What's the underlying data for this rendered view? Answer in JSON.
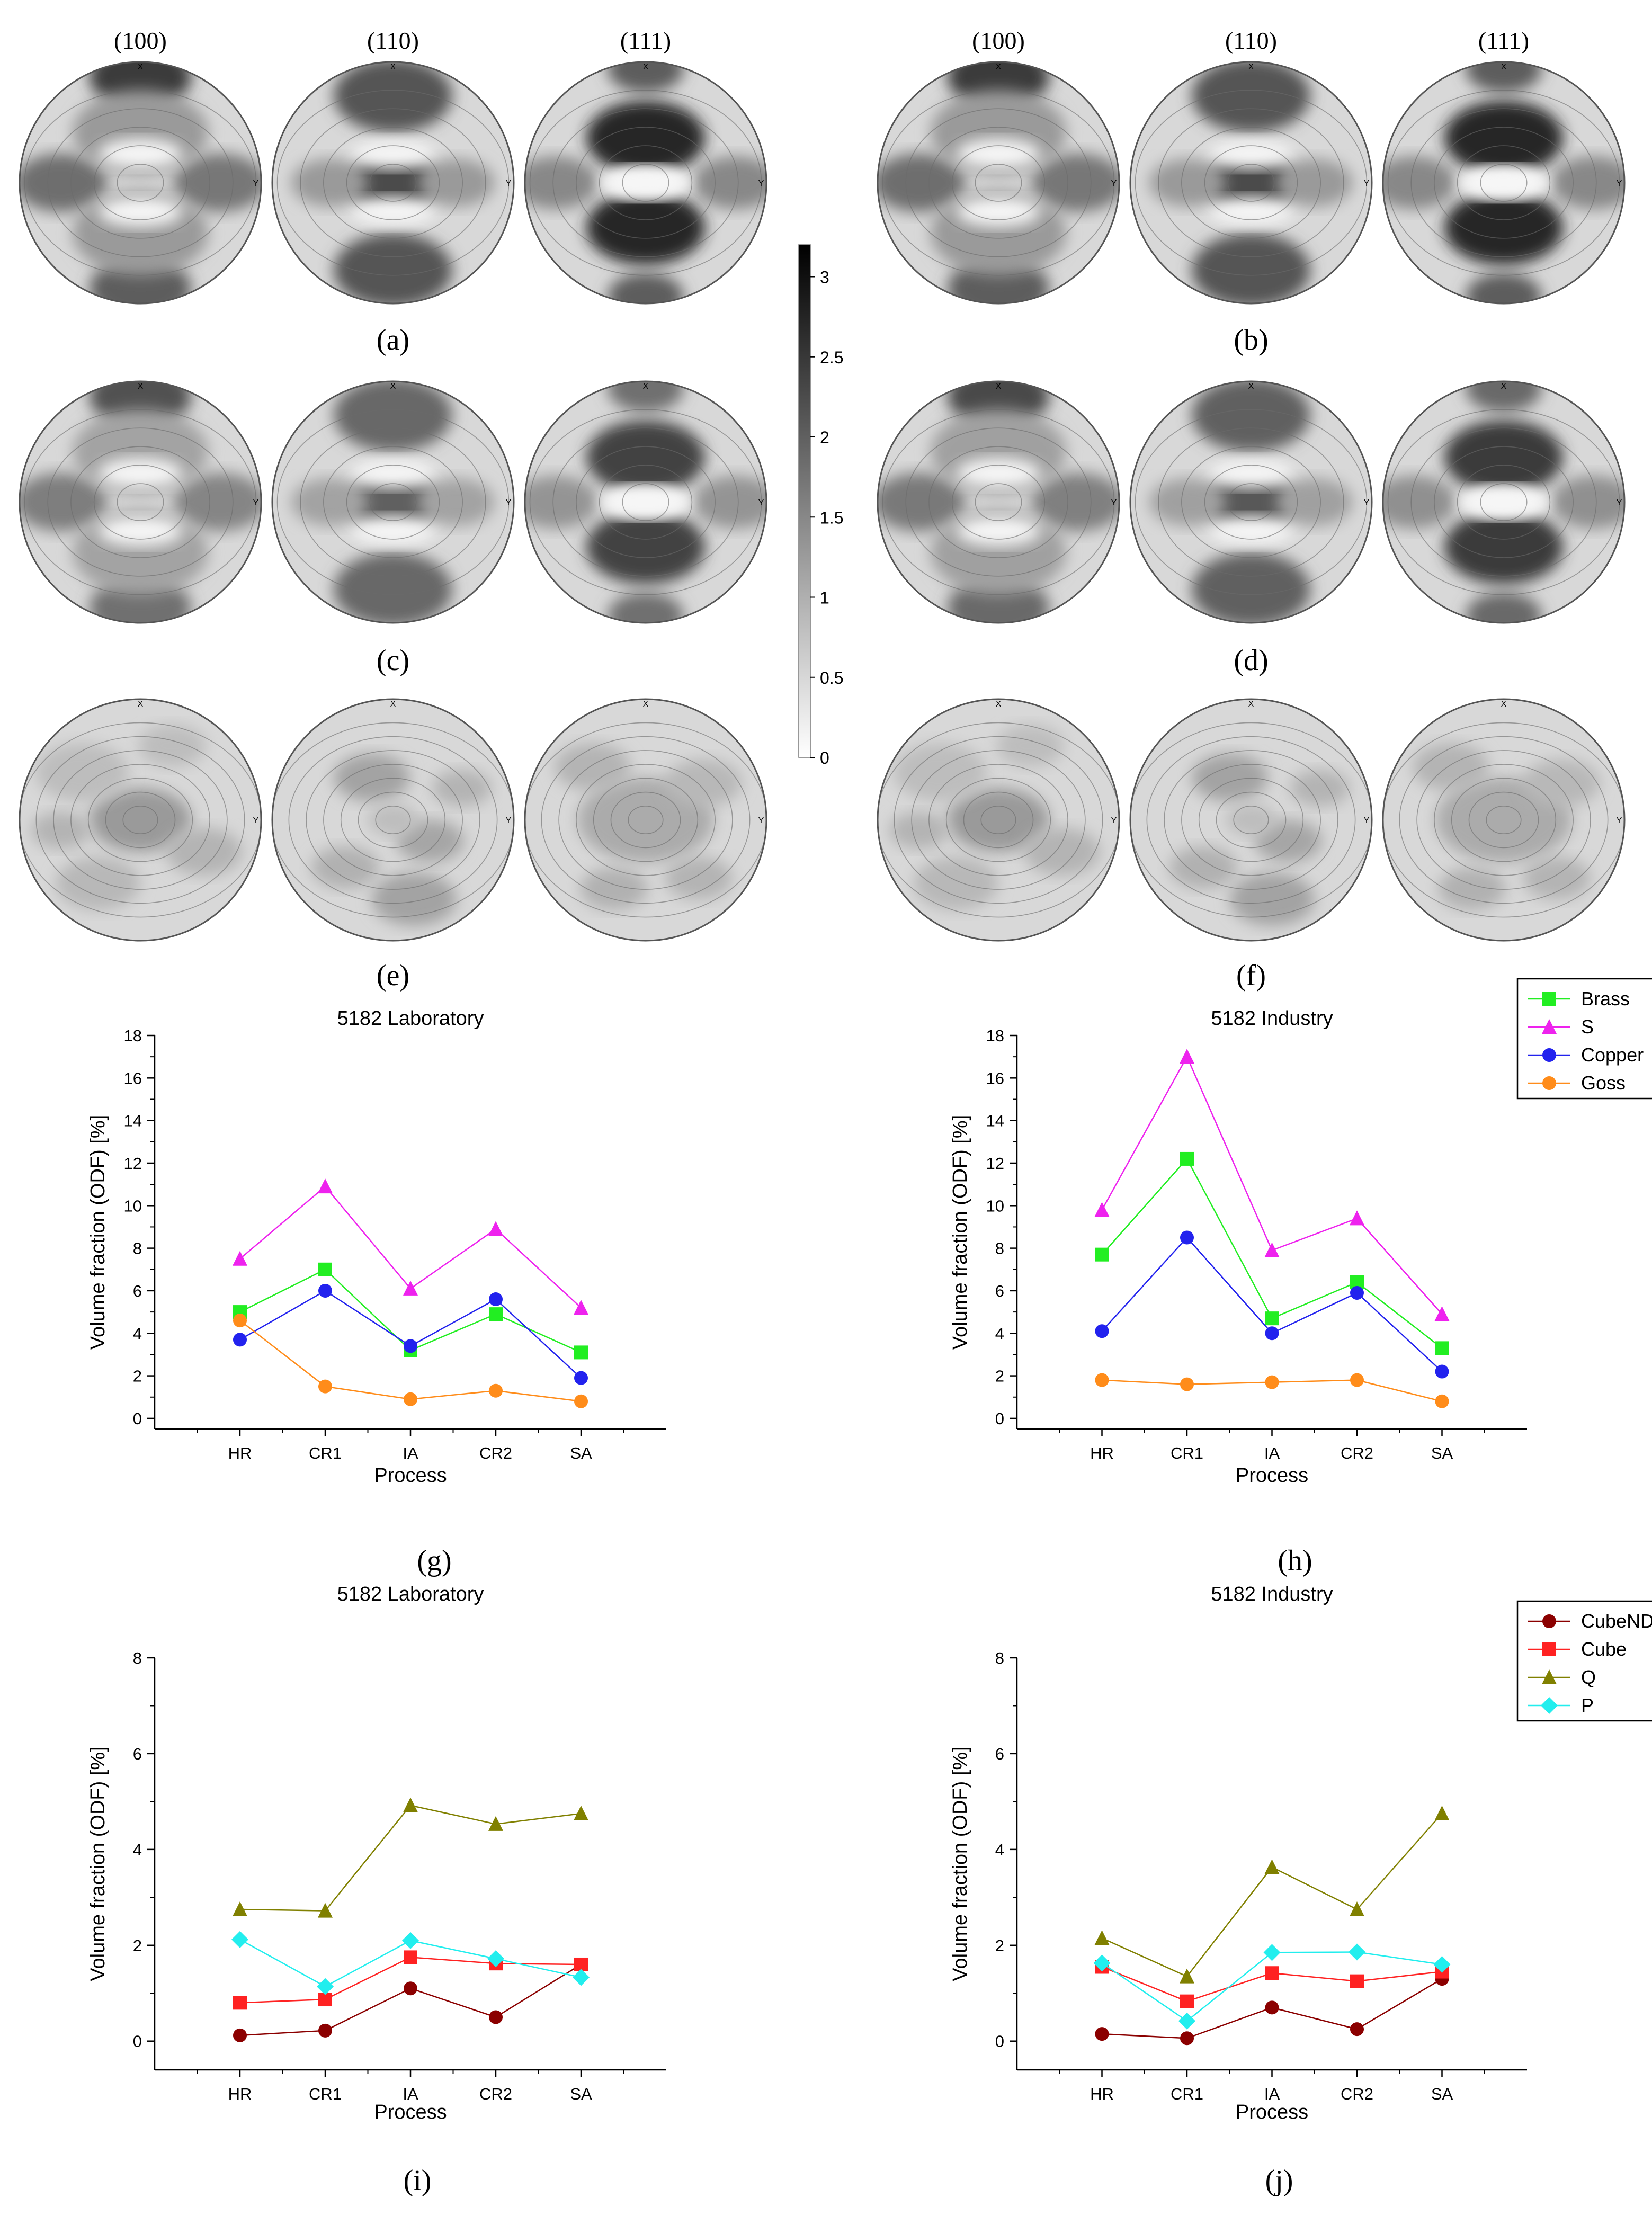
{
  "figure": {
    "pole_headers": [
      "(100)",
      "(110)",
      "(111)"
    ],
    "panel_labels": [
      "(a)",
      "(b)",
      "(c)",
      "(d)",
      "(e)",
      "(f)",
      "(g)",
      "(h)",
      "(i)",
      "(j)"
    ],
    "axis_marks": {
      "top": "X",
      "right": "Y"
    }
  },
  "colorbar": {
    "ticks": [
      "0",
      "0.5",
      "1",
      "1.5",
      "2",
      "2.5",
      "3"
    ],
    "values": [
      0,
      0.5,
      1,
      1.5,
      2,
      2.5,
      3
    ],
    "range": [
      0,
      3.2
    ],
    "colors": [
      "#ffffff",
      "#000000"
    ]
  },
  "pole_figures": [
    {
      "panel": "a",
      "sharpness": 1.0,
      "style": "rolling"
    },
    {
      "panel": "b",
      "sharpness": 1.0,
      "style": "rolling"
    },
    {
      "panel": "c",
      "sharpness": 0.85,
      "style": "rolling"
    },
    {
      "panel": "d",
      "sharpness": 0.9,
      "style": "rolling"
    },
    {
      "panel": "e",
      "sharpness": 0.35,
      "style": "random"
    },
    {
      "panel": "f",
      "sharpness": 0.35,
      "style": "random"
    }
  ],
  "chart_data": [
    {
      "panel": "g",
      "type": "line",
      "title": "5182 Laboratory",
      "xlabel": "Process",
      "ylabel": "Volume fraction (ODF) [%]",
      "categories": [
        "HR",
        "CR1",
        "IA",
        "CR2",
        "SA"
      ],
      "ylim": [
        -0.5,
        18
      ],
      "yticks": [
        0,
        2,
        4,
        6,
        8,
        10,
        12,
        14,
        16,
        18
      ],
      "series": [
        {
          "name": "Brass",
          "color": "#22ee22",
          "marker": "square",
          "values": [
            5.0,
            7.0,
            3.2,
            4.9,
            3.1
          ]
        },
        {
          "name": "S",
          "color": "#ee22ee",
          "marker": "triangle",
          "values": [
            7.5,
            10.9,
            6.1,
            8.9,
            5.2
          ]
        },
        {
          "name": "Copper",
          "color": "#2222ee",
          "marker": "circle",
          "values": [
            3.7,
            6.0,
            3.4,
            5.6,
            1.9
          ]
        },
        {
          "name": "Goss",
          "color": "#ff8c1a",
          "marker": "circle",
          "values": [
            4.6,
            1.5,
            0.9,
            1.3,
            0.8
          ]
        }
      ]
    },
    {
      "panel": "h",
      "type": "line",
      "title": "5182 Industry",
      "xlabel": "Process",
      "ylabel": "Volume fraction (ODF) [%]",
      "categories": [
        "HR",
        "CR1",
        "IA",
        "CR2",
        "SA"
      ],
      "ylim": [
        -0.5,
        18
      ],
      "yticks": [
        0,
        2,
        4,
        6,
        8,
        10,
        12,
        14,
        16,
        18
      ],
      "legend": "top-right",
      "series": [
        {
          "name": "Brass",
          "color": "#22ee22",
          "marker": "square",
          "values": [
            7.7,
            12.2,
            4.7,
            6.4,
            3.3
          ]
        },
        {
          "name": "S",
          "color": "#ee22ee",
          "marker": "triangle",
          "values": [
            9.8,
            17.0,
            7.9,
            9.4,
            4.9
          ]
        },
        {
          "name": "Copper",
          "color": "#2222ee",
          "marker": "circle",
          "values": [
            4.1,
            8.5,
            4.0,
            5.9,
            2.2
          ]
        },
        {
          "name": "Goss",
          "color": "#ff8c1a",
          "marker": "circle",
          "values": [
            1.8,
            1.6,
            1.7,
            1.8,
            0.8
          ]
        }
      ]
    },
    {
      "panel": "i",
      "type": "line",
      "title": "5182 Laboratory",
      "xlabel": "Process",
      "ylabel": "Volume fraction (ODF) [%]",
      "categories": [
        "HR",
        "CR1",
        "IA",
        "CR2",
        "SA"
      ],
      "ylim": [
        -0.6,
        8
      ],
      "yticks": [
        0,
        2,
        4,
        6,
        8
      ],
      "series": [
        {
          "name": "CubeND",
          "color": "#8b0000",
          "marker": "circle",
          "values": [
            0.12,
            0.22,
            1.1,
            0.5,
            1.6
          ]
        },
        {
          "name": "Cube",
          "color": "#ff2222",
          "marker": "square",
          "values": [
            0.8,
            0.87,
            1.75,
            1.62,
            1.6
          ]
        },
        {
          "name": "Q",
          "color": "#808000",
          "marker": "triangle",
          "values": [
            2.75,
            2.72,
            4.92,
            4.53,
            4.75
          ]
        },
        {
          "name": "P",
          "color": "#22eeee",
          "marker": "diamond",
          "values": [
            2.12,
            1.14,
            2.1,
            1.72,
            1.33
          ]
        }
      ]
    },
    {
      "panel": "j",
      "type": "line",
      "title": "5182 Industry",
      "xlabel": "Process",
      "ylabel": "Volume fraction (ODF) [%]",
      "categories": [
        "HR",
        "CR1",
        "IA",
        "CR2",
        "SA"
      ],
      "ylim": [
        -0.6,
        8
      ],
      "yticks": [
        0,
        2,
        4,
        6,
        8
      ],
      "legend": "top-right",
      "series": [
        {
          "name": "CubeND",
          "color": "#8b0000",
          "marker": "circle",
          "values": [
            0.15,
            0.06,
            0.7,
            0.25,
            1.3
          ]
        },
        {
          "name": "Cube",
          "color": "#ff2222",
          "marker": "square",
          "values": [
            1.55,
            0.83,
            1.42,
            1.25,
            1.45
          ]
        },
        {
          "name": "Q",
          "color": "#808000",
          "marker": "triangle",
          "values": [
            2.15,
            1.35,
            3.63,
            2.75,
            4.75
          ]
        },
        {
          "name": "P",
          "color": "#22eeee",
          "marker": "diamond",
          "values": [
            1.63,
            0.42,
            1.85,
            1.86,
            1.6
          ]
        }
      ]
    }
  ]
}
